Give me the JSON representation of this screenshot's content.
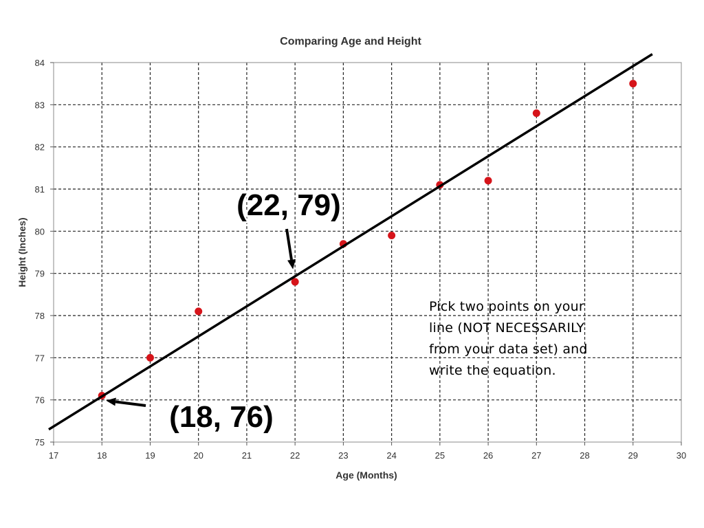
{
  "chart_data": {
    "type": "scatter",
    "title": "Comparing Age and Height",
    "xlabel": "Age (Months)",
    "ylabel": "Height (Inches)",
    "xlim": [
      17,
      30
    ],
    "ylim": [
      75,
      84
    ],
    "xticks": [
      "17",
      "18",
      "19",
      "20",
      "21",
      "22",
      "23",
      "24",
      "25",
      "26",
      "27",
      "28",
      "29",
      "30"
    ],
    "yticks": [
      "75",
      "76",
      "77",
      "78",
      "79",
      "80",
      "81",
      "82",
      "83",
      "84"
    ],
    "grid": true,
    "point_color": "#d6141a",
    "series": [
      {
        "x": [
          18,
          19,
          20,
          22,
          23,
          24,
          25,
          26,
          27,
          29
        ],
        "y": [
          76.1,
          77.0,
          78.1,
          78.8,
          79.7,
          79.9,
          81.1,
          81.2,
          82.8,
          83.5
        ]
      }
    ],
    "trend_line": {
      "x": [
        16.9,
        29.4
      ],
      "y": [
        75.3,
        84.2
      ],
      "color": "#000000"
    },
    "annotations": [
      {
        "text": "(22, 79)",
        "x": 22,
        "y": 79
      },
      {
        "text": "(18, 76)",
        "x": 18,
        "y": 76
      }
    ]
  },
  "note": {
    "lines": [
      "Pick two points on your",
      "line (NOT NECESSARILY",
      "from your data set) and",
      "write the equation."
    ]
  }
}
